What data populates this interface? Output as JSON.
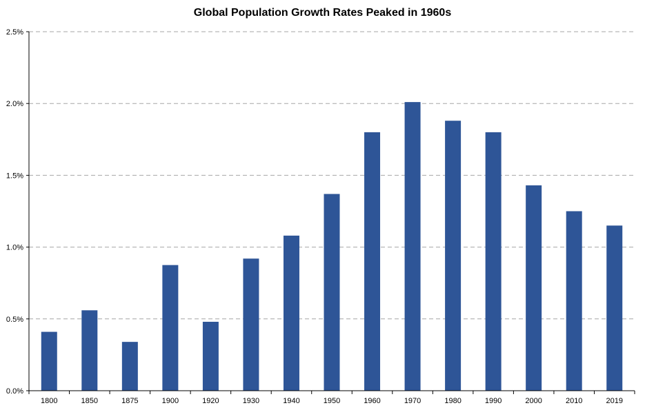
{
  "chart_data": {
    "type": "bar",
    "title": "Global Population Growth Rates Peaked in 1960s",
    "xlabel": "",
    "ylabel": "",
    "categories": [
      "1800",
      "1850",
      "1875",
      "1900",
      "1920",
      "1930",
      "1940",
      "1950",
      "1960",
      "1970",
      "1980",
      "1990",
      "2000",
      "2010",
      "2019"
    ],
    "values": [
      0.41,
      0.56,
      0.34,
      0.875,
      0.48,
      0.92,
      1.08,
      1.37,
      1.8,
      2.01,
      1.88,
      1.8,
      1.43,
      1.25,
      1.15
    ],
    "value_unit": "%",
    "ylim": [
      0,
      2.5
    ],
    "y_ticks": [
      0,
      0.5,
      1.0,
      1.5,
      2.0,
      2.5
    ],
    "y_tick_labels": [
      "0.0%",
      "0.5%",
      "1.0%",
      "1.5%",
      "2.0%",
      "2.5%"
    ],
    "grid": true,
    "grid_style": "dashed",
    "bar_color": "#2E5597",
    "grid_color": "#A6A6A6",
    "legend": "none"
  }
}
